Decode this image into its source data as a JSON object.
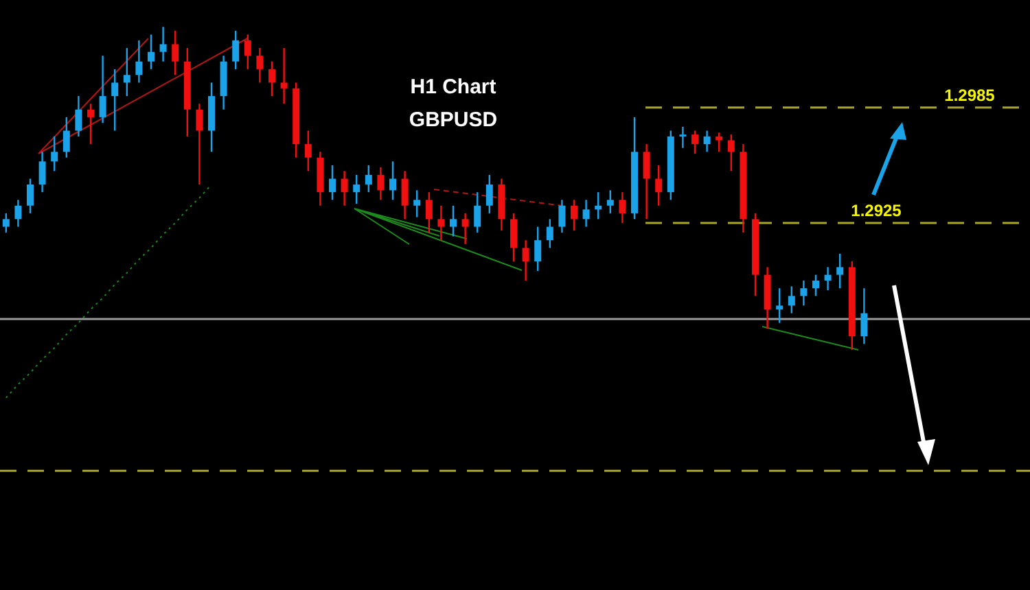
{
  "chart_data": {
    "type": "candlestick",
    "title": "H1 Chart",
    "subtitle": "GBPUSD",
    "categories": [
      null,
      null,
      null,
      null,
      null,
      null,
      null,
      null,
      null,
      null,
      null,
      null,
      null,
      null,
      null,
      null,
      null,
      null,
      null,
      null,
      null,
      null,
      null,
      null,
      null,
      null,
      null,
      null,
      null,
      null,
      null,
      null,
      null,
      null,
      null,
      null,
      null,
      null,
      null,
      null,
      null,
      null,
      null,
      null,
      null,
      null,
      null,
      null,
      null,
      null,
      null,
      null,
      null,
      null,
      null,
      null,
      null,
      null,
      null,
      null,
      null,
      null,
      null,
      null,
      null,
      null,
      null,
      null,
      null,
      null,
      null,
      null
    ],
    "ohlc": [
      [
        1.2923,
        1.293,
        1.292,
        1.2927
      ],
      [
        1.2927,
        1.2937,
        1.2923,
        1.2934
      ],
      [
        1.2934,
        1.2948,
        1.293,
        1.2945
      ],
      [
        1.2945,
        1.2962,
        1.2941,
        1.2957
      ],
      [
        1.2957,
        1.297,
        1.2952,
        1.2962
      ],
      [
        1.2962,
        1.298,
        1.2959,
        1.2973
      ],
      [
        1.2973,
        1.2991,
        1.297,
        1.2984
      ],
      [
        1.2984,
        1.2987,
        1.2966,
        1.298
      ],
      [
        1.298,
        1.3012,
        1.2977,
        1.2991
      ],
      [
        1.2991,
        1.3005,
        1.2973,
        1.2998
      ],
      [
        1.2998,
        1.3016,
        1.2991,
        1.3002
      ],
      [
        1.3002,
        1.302,
        1.2998,
        1.3009
      ],
      [
        1.3009,
        1.3023,
        1.3005,
        1.3014
      ],
      [
        1.3014,
        1.3027,
        1.3009,
        1.3018
      ],
      [
        1.3018,
        1.3025,
        1.3002,
        1.3009
      ],
      [
        1.3009,
        1.3016,
        1.297,
        1.2984
      ],
      [
        1.2984,
        1.2987,
        1.2945,
        1.2973
      ],
      [
        1.2973,
        1.2998,
        1.2962,
        1.2991
      ],
      [
        1.2991,
        1.3012,
        1.2984,
        1.3009
      ],
      [
        1.3009,
        1.3025,
        1.3005,
        1.302
      ],
      [
        1.302,
        1.3023,
        1.3005,
        1.3012
      ],
      [
        1.3012,
        1.3016,
        1.2998,
        1.3005
      ],
      [
        1.3005,
        1.3009,
        1.2991,
        1.2998
      ],
      [
        1.2998,
        1.3016,
        1.2987,
        1.2995
      ],
      [
        1.2995,
        1.2998,
        1.2959,
        1.2966
      ],
      [
        1.2966,
        1.2973,
        1.2952,
        1.2959
      ],
      [
        1.2959,
        1.2962,
        1.2934,
        1.2941
      ],
      [
        1.2941,
        1.2955,
        1.2937,
        1.2948
      ],
      [
        1.2948,
        1.2952,
        1.2934,
        1.2941
      ],
      [
        1.2941,
        1.295,
        1.2935,
        1.2945
      ],
      [
        1.2945,
        1.2955,
        1.2941,
        1.295
      ],
      [
        1.295,
        1.2954,
        1.2937,
        1.2942
      ],
      [
        1.2942,
        1.2957,
        1.2937,
        1.2948
      ],
      [
        1.2948,
        1.2952,
        1.2927,
        1.2934
      ],
      [
        1.2934,
        1.2942,
        1.2928,
        1.2937
      ],
      [
        1.2937,
        1.2941,
        1.292,
        1.2927
      ],
      [
        1.2927,
        1.2934,
        1.2916,
        1.2923
      ],
      [
        1.2923,
        1.2934,
        1.2918,
        1.2927
      ],
      [
        1.2927,
        1.293,
        1.2914,
        1.2923
      ],
      [
        1.2923,
        1.2941,
        1.292,
        1.2934
      ],
      [
        1.2934,
        1.295,
        1.293,
        1.2945
      ],
      [
        1.2945,
        1.2948,
        1.2921,
        1.2927
      ],
      [
        1.2927,
        1.293,
        1.2905,
        1.2912
      ],
      [
        1.2912,
        1.2916,
        1.2895,
        1.2905
      ],
      [
        1.2905,
        1.2923,
        1.29,
        1.2916
      ],
      [
        1.2916,
        1.2927,
        1.2912,
        1.2923
      ],
      [
        1.2923,
        1.2937,
        1.292,
        1.2934
      ],
      [
        1.2934,
        1.2937,
        1.2921,
        1.2927
      ],
      [
        1.2927,
        1.2937,
        1.2923,
        1.2932
      ],
      [
        1.2932,
        1.2941,
        1.2927,
        1.2934
      ],
      [
        1.2934,
        1.2942,
        1.293,
        1.2937
      ],
      [
        1.2937,
        1.2941,
        1.2925,
        1.293
      ],
      [
        1.293,
        1.298,
        1.2927,
        1.2962
      ],
      [
        1.2962,
        1.2966,
        1.2927,
        1.2948
      ],
      [
        1.2948,
        1.2955,
        1.2934,
        1.2941
      ],
      [
        1.2941,
        1.2973,
        1.2937,
        1.297
      ],
      [
        1.297,
        1.2975,
        1.2964,
        1.2971
      ],
      [
        1.2971,
        1.2973,
        1.2961,
        1.2966
      ],
      [
        1.2966,
        1.2973,
        1.2962,
        1.297
      ],
      [
        1.297,
        1.2972,
        1.2962,
        1.2968
      ],
      [
        1.2968,
        1.2971,
        1.2952,
        1.2962
      ],
      [
        1.2962,
        1.2966,
        1.292,
        1.2927
      ],
      [
        1.2927,
        1.293,
        1.2887,
        1.2898
      ],
      [
        1.2898,
        1.2902,
        1.287,
        1.288
      ],
      [
        1.288,
        1.2891,
        1.2873,
        1.2882
      ],
      [
        1.2882,
        1.2892,
        1.2878,
        1.2887
      ],
      [
        1.2887,
        1.2895,
        1.2882,
        1.2891
      ],
      [
        1.2891,
        1.2898,
        1.2887,
        1.2895
      ],
      [
        1.2895,
        1.2902,
        1.289,
        1.2898
      ],
      [
        1.2898,
        1.2909,
        1.2891,
        1.2902
      ],
      [
        1.2902,
        1.2905,
        1.2859,
        1.2866
      ],
      [
        1.2866,
        1.2891,
        1.2862,
        1.2878
      ]
    ],
    "colors": [
      "#1aa3e8",
      "#1aa3e8",
      "#1aa3e8",
      "#1aa3e8",
      "#1aa3e8",
      "#1aa3e8",
      "#1aa3e8",
      "#f01010",
      "#1aa3e8",
      "#1aa3e8",
      "#1aa3e8",
      "#1aa3e8",
      "#1aa3e8",
      "#1aa3e8",
      "#f01010",
      "#f01010",
      "#f01010",
      "#1aa3e8",
      "#1aa3e8",
      "#1aa3e8",
      "#f01010",
      "#f01010",
      "#f01010",
      "#f01010",
      "#f01010",
      "#f01010",
      "#f01010",
      "#1aa3e8",
      "#f01010",
      "#1aa3e8",
      "#1aa3e8",
      "#f01010",
      "#1aa3e8",
      "#f01010",
      "#1aa3e8",
      "#f01010",
      "#f01010",
      "#1aa3e8",
      "#f01010",
      "#1aa3e8",
      "#1aa3e8",
      "#f01010",
      "#f01010",
      "#f01010",
      "#1aa3e8",
      "#1aa3e8",
      "#1aa3e8",
      "#f01010",
      "#1aa3e8",
      "#1aa3e8",
      "#1aa3e8",
      "#f01010",
      "#1aa3e8",
      "#f01010",
      "#f01010",
      "#1aa3e8",
      "#1aa3e8",
      "#f01010",
      "#1aa3e8",
      "#f01010",
      "#f01010",
      "#f01010",
      "#f01010",
      "#f01010",
      "#1aa3e8",
      "#1aa3e8",
      "#1aa3e8",
      "#1aa3e8",
      "#1aa3e8",
      "#1aa3e8",
      "#f01010",
      "#1aa3e8"
    ],
    "ylim": [
      1.2734,
      1.3041
    ],
    "series": [
      {
        "type": "line",
        "values": [
          1.2834,
          1.2841,
          1.2847,
          1.2854,
          1.286,
          1.2867,
          1.2873,
          1.288,
          1.2886,
          1.2893,
          1.2899,
          1.2906,
          1.2912,
          1.2919,
          1.2925,
          1.2932,
          1.2938,
          1.2945,
          null,
          null,
          null,
          null,
          null,
          null,
          null,
          null,
          null,
          null,
          null,
          null,
          null,
          null,
          null,
          null,
          null,
          null,
          null,
          null,
          null,
          null,
          null,
          null,
          null,
          null,
          null,
          null,
          null,
          null,
          null,
          null,
          null,
          null,
          null,
          null,
          null,
          null,
          null,
          null,
          null,
          null,
          null,
          null,
          null,
          null,
          null,
          null,
          null,
          null,
          null,
          null,
          null,
          null
        ],
        "color": "#1d8a1d",
        "line_style": "dotted"
      }
    ],
    "ref_lines": [
      {
        "axis": "y",
        "value": 1.2985,
        "label": "1.2985",
        "color": "#a8a826",
        "line_style": "dashed"
      },
      {
        "axis": "y",
        "value": 1.2925,
        "label": "1.2925",
        "color": "#a8a826",
        "line_style": "dashed"
      },
      {
        "axis": "y",
        "value": 1.2875,
        "color": "#9a9a9a",
        "line_style": "solid"
      },
      {
        "axis": "y",
        "value": 1.2796,
        "color": "#a8a826",
        "line_style": "dashed"
      }
    ]
  }
}
